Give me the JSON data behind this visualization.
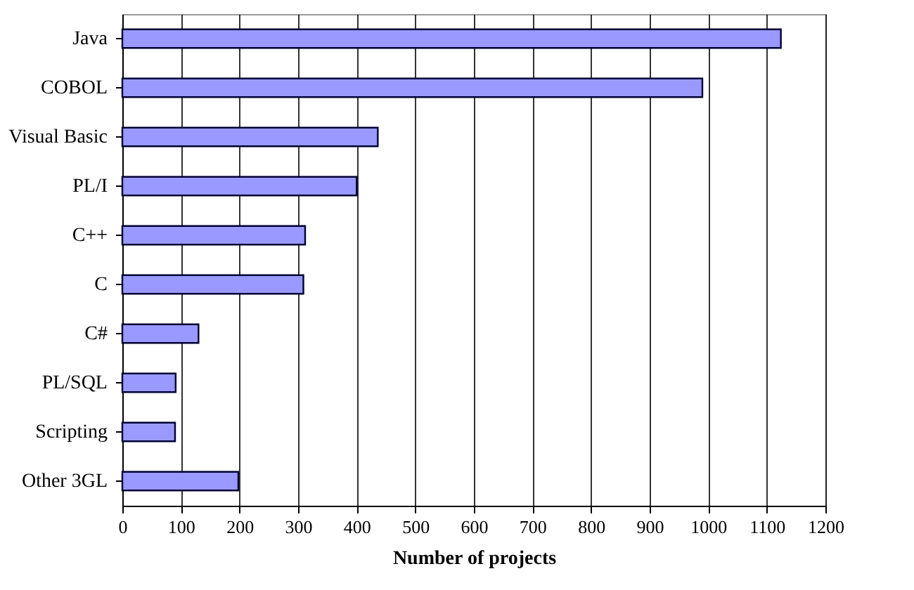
{
  "chart_data": {
    "type": "bar",
    "orientation": "horizontal",
    "xlabel": "Number of projects",
    "categories": [
      "Java",
      "COBOL",
      "Visual Basic",
      "PL/I",
      "C++",
      "C",
      "C#",
      "PL/SQL",
      "Scripting",
      "Other 3GL"
    ],
    "values": [
      1124,
      990,
      436,
      400,
      312,
      309,
      130,
      91,
      90,
      198
    ],
    "color": "#9999ff",
    "xlim": [
      0,
      1200
    ],
    "xticks": [
      0,
      100,
      200,
      300,
      400,
      500,
      600,
      700,
      800,
      900,
      1000,
      1100,
      1200
    ],
    "grid": "x"
  }
}
